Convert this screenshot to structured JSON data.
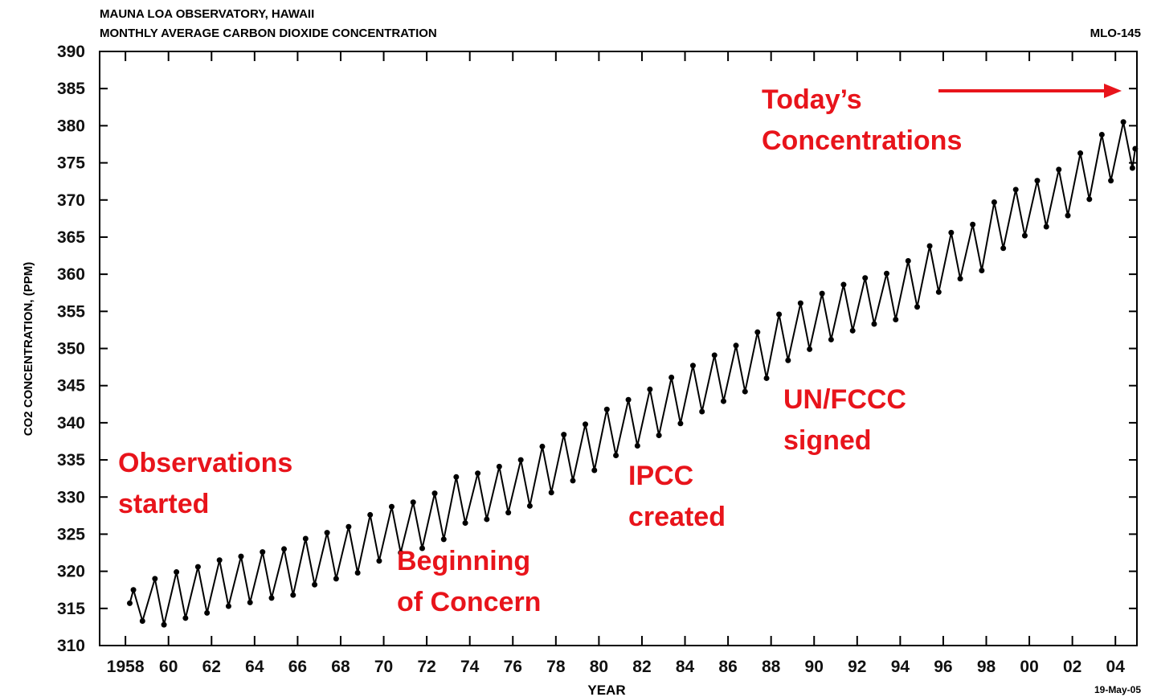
{
  "chart_data": {
    "type": "line",
    "title": "MAUNA LOA OBSERVATORY, HAWAII",
    "subtitle": "MONTHLY AVERAGE CARBON DIOXIDE CONCENTRATION",
    "code": "MLO-145",
    "date_stamp": "19-May-05",
    "x_label": "YEAR",
    "y_label": "CO2 CONCENTRATION, (PPM)",
    "xlim": [
      1956.8,
      2005.0
    ],
    "ylim": [
      310,
      390
    ],
    "xticks": [
      1958,
      {
        "value": 1960,
        "label": "60"
      },
      {
        "value": 1962,
        "label": "62"
      },
      {
        "value": 1964,
        "label": "64"
      },
      {
        "value": 1966,
        "label": "66"
      },
      {
        "value": 1968,
        "label": "68"
      },
      {
        "value": 1970,
        "label": "70"
      },
      {
        "value": 1972,
        "label": "72"
      },
      {
        "value": 1974,
        "label": "74"
      },
      {
        "value": 1976,
        "label": "76"
      },
      {
        "value": 1978,
        "label": "78"
      },
      {
        "value": 1980,
        "label": "80"
      },
      {
        "value": 1982,
        "label": "82"
      },
      {
        "value": 1984,
        "label": "84"
      },
      {
        "value": 1986,
        "label": "86"
      },
      {
        "value": 1988,
        "label": "88"
      },
      {
        "value": 1990,
        "label": "90"
      },
      {
        "value": 1992,
        "label": "92"
      },
      {
        "value": 1994,
        "label": "94"
      },
      {
        "value": 1996,
        "label": "96"
      },
      {
        "value": 1998,
        "label": "98"
      },
      {
        "value": 2000,
        "label": "00"
      },
      {
        "value": 2002,
        "label": "02"
      },
      {
        "value": 2004,
        "label": "04"
      }
    ],
    "yticks": [
      310,
      315,
      320,
      325,
      330,
      335,
      340,
      345,
      350,
      355,
      360,
      365,
      370,
      375,
      380,
      385,
      390
    ],
    "annotations": [
      [
        "Today’s",
        "Concentrations"
      ],
      [
        "Observations",
        "started"
      ],
      [
        "IPCC",
        "created"
      ],
      [
        "UN/FCCC",
        "signed"
      ],
      [
        "Beginning",
        "of Concern"
      ]
    ],
    "series": [
      {
        "name": "CO2",
        "color": "#000000",
        "x": [
          1958.2,
          1958.37,
          1958.79,
          1959.37,
          1959.79,
          1960.37,
          1960.79,
          1961.37,
          1961.79,
          1962.37,
          1962.79,
          1963.37,
          1963.79,
          1964.37,
          1964.79,
          1965.37,
          1965.79,
          1966.37,
          1966.79,
          1967.37,
          1967.79,
          1968.37,
          1968.79,
          1969.37,
          1969.79,
          1970.37,
          1970.79,
          1971.37,
          1971.79,
          1972.37,
          1972.79,
          1973.37,
          1973.79,
          1974.37,
          1974.79,
          1975.37,
          1975.79,
          1976.37,
          1976.79,
          1977.37,
          1977.79,
          1978.37,
          1978.79,
          1979.37,
          1979.79,
          1980.37,
          1980.79,
          1981.37,
          1981.79,
          1982.37,
          1982.79,
          1983.37,
          1983.79,
          1984.37,
          1984.79,
          1985.37,
          1985.79,
          1986.37,
          1986.79,
          1987.37,
          1987.79,
          1988.37,
          1988.79,
          1989.37,
          1989.79,
          1990.37,
          1990.79,
          1991.37,
          1991.79,
          1992.37,
          1992.79,
          1993.37,
          1993.79,
          1994.37,
          1994.79,
          1995.37,
          1995.79,
          1996.37,
          1996.79,
          1997.37,
          1997.79,
          1998.37,
          1998.79,
          1999.37,
          1999.79,
          2000.37,
          2000.79,
          2001.37,
          2001.79,
          2002.37,
          2002.79,
          2003.37,
          2003.79,
          2004.37,
          2004.79,
          2004.92
        ],
        "values": [
          315.7,
          317.5,
          313.3,
          319.0,
          312.8,
          319.9,
          313.7,
          320.6,
          314.4,
          321.5,
          315.3,
          322.0,
          315.8,
          322.6,
          316.4,
          323.0,
          316.8,
          324.4,
          318.2,
          325.2,
          319.0,
          326.0,
          319.8,
          327.6,
          321.4,
          328.7,
          322.5,
          329.3,
          323.1,
          330.5,
          324.3,
          332.7,
          326.5,
          333.2,
          327.0,
          334.1,
          327.9,
          335.0,
          328.8,
          336.8,
          330.6,
          338.4,
          332.2,
          339.8,
          333.6,
          341.8,
          335.6,
          343.1,
          336.9,
          344.5,
          338.3,
          346.1,
          339.9,
          347.7,
          341.5,
          349.1,
          342.9,
          350.4,
          344.2,
          352.2,
          346.0,
          354.6,
          348.4,
          356.1,
          349.9,
          357.4,
          351.2,
          358.6,
          352.4,
          359.5,
          353.3,
          360.1,
          353.9,
          361.8,
          355.6,
          363.8,
          357.6,
          365.6,
          359.4,
          366.7,
          360.5,
          369.7,
          363.5,
          371.4,
          365.2,
          372.6,
          366.4,
          374.1,
          367.9,
          376.3,
          370.1,
          378.8,
          372.6,
          380.5,
          374.3,
          376.9
        ]
      }
    ]
  }
}
